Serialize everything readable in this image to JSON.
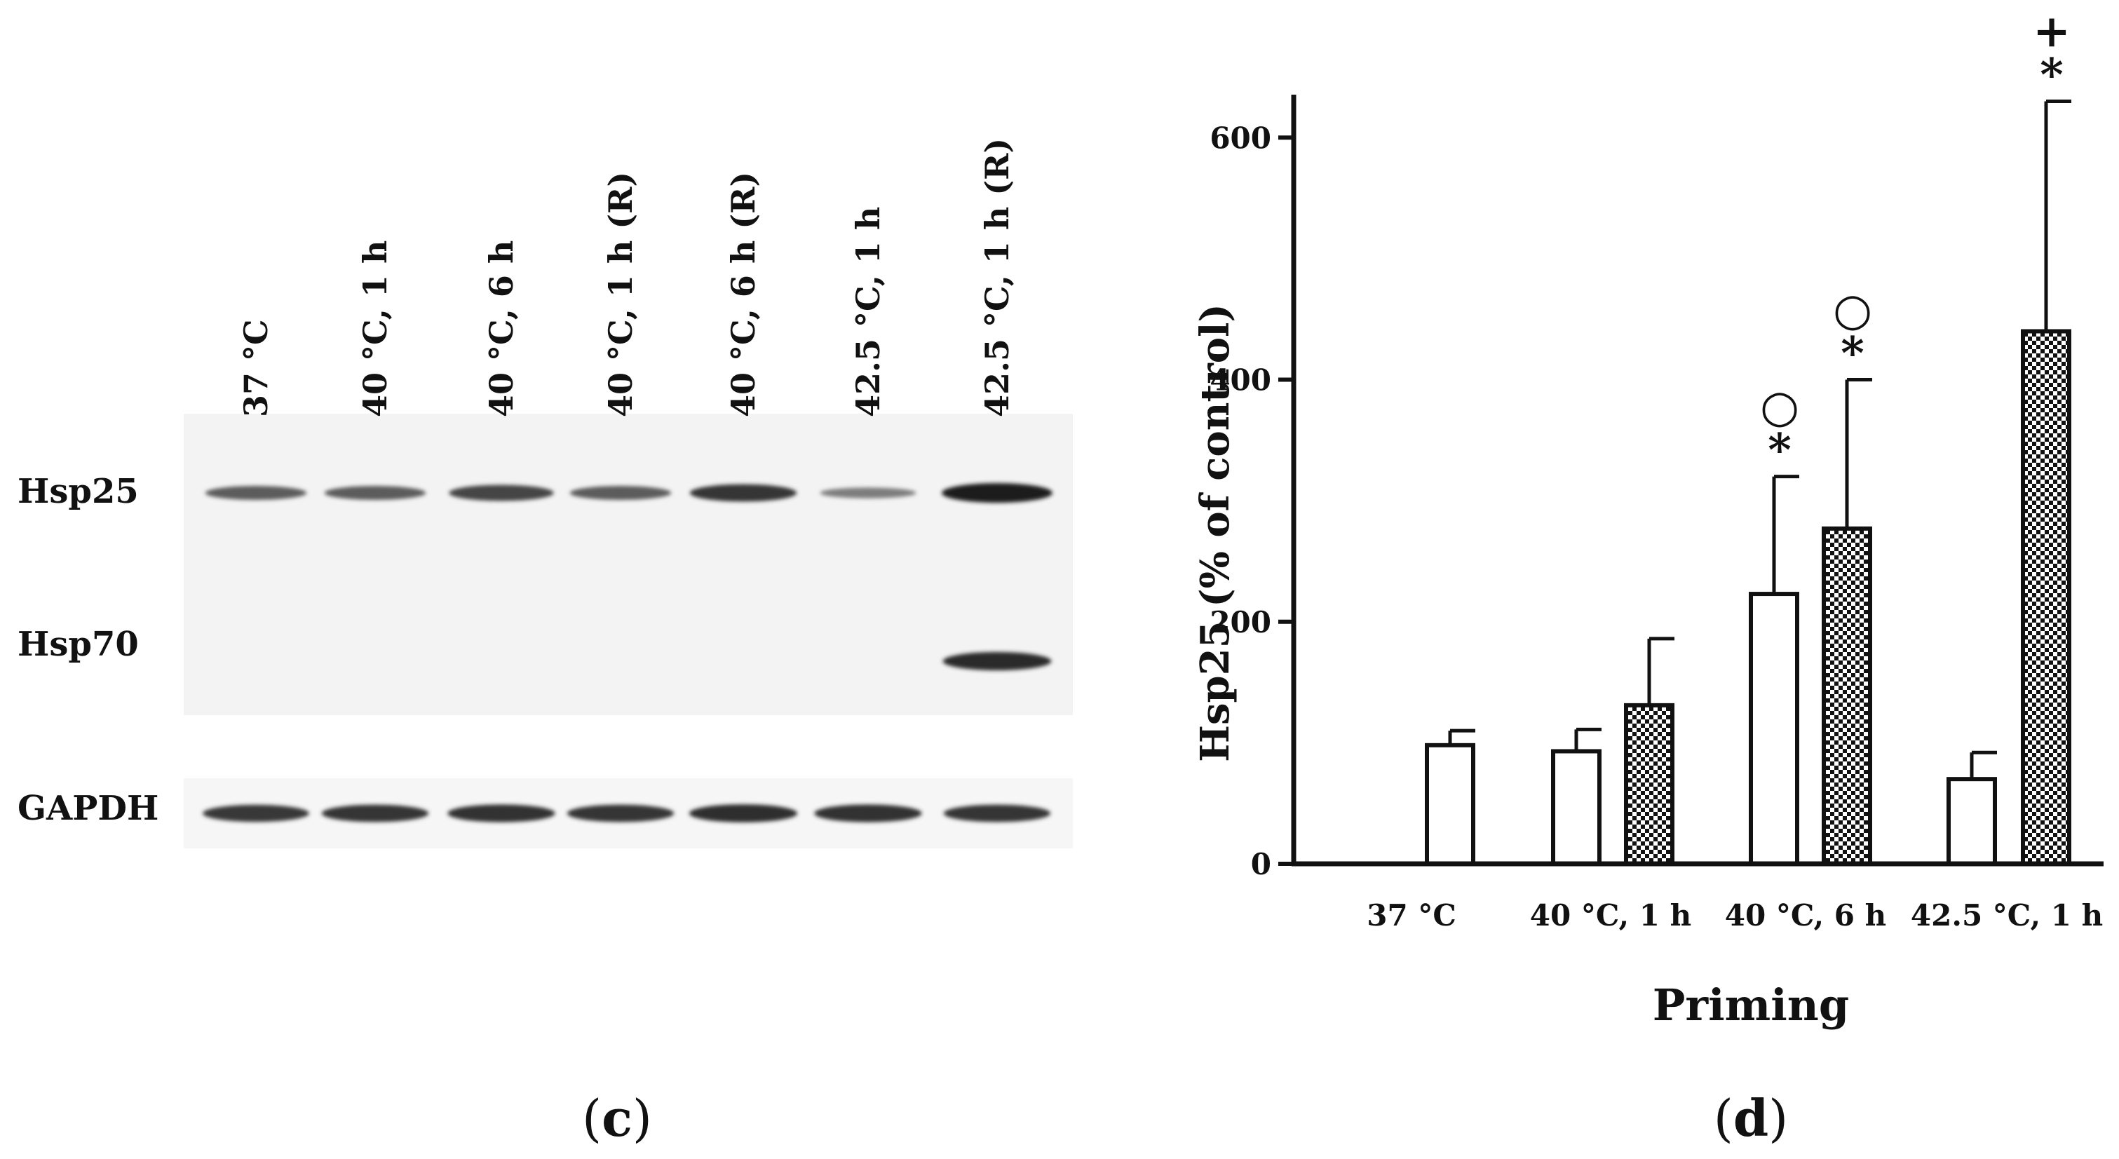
{
  "blot": {
    "lanes": [
      "37 °C",
      "40 °C, 1 h",
      "40 °C, 6 h",
      "40 °C, 1 h (R)",
      "40 °C, 6 h (R)",
      "42.5 °C, 1 h",
      "42.5 °C, 1 h (R)"
    ],
    "rows": [
      {
        "label": "Hsp25",
        "intensity": [
          0.55,
          0.55,
          0.72,
          0.55,
          0.82,
          0.3,
          1.0
        ]
      },
      {
        "label": "Hsp70",
        "intensity": [
          0,
          0,
          0,
          0,
          0,
          0,
          0.9
        ]
      },
      {
        "label": "GAPDH",
        "intensity": [
          0.8,
          0.82,
          0.85,
          0.82,
          0.88,
          0.85,
          0.82
        ]
      }
    ],
    "panel_label_open": "(",
    "panel_label_letter": "c",
    "panel_label_close": ")"
  },
  "chart_data": {
    "type": "bar",
    "categories": [
      "37 °C",
      "40 °C, 1 h",
      "40 °C, 6 h",
      "42.5 °C, 1 h"
    ],
    "series": [
      {
        "fill": "white",
        "values": [
          98,
          93,
          223,
          70
        ],
        "errors": [
          12,
          18,
          97,
          22
        ]
      },
      {
        "fill": "checkered",
        "values": [
          null,
          131,
          277,
          440
        ],
        "errors": [
          null,
          55,
          123,
          190
        ]
      }
    ],
    "xlabel": "Priming",
    "ylabel": "Hsp25 (% of control)",
    "ylim": [
      0,
      650
    ],
    "yticks": [
      0,
      200,
      400,
      600
    ],
    "annotations": [
      {
        "category": "40 °C, 6 h",
        "series": 0,
        "marks": [
          "*",
          "○"
        ]
      },
      {
        "category": "40 °C, 6 h",
        "series": 1,
        "marks": [
          "*",
          "○"
        ]
      },
      {
        "category": "42.5 °C, 1 h",
        "series": 1,
        "marks": [
          "*",
          "+"
        ]
      }
    ],
    "grid": false,
    "panel_label_open": "(",
    "panel_label_letter": "d",
    "panel_label_close": ")"
  }
}
